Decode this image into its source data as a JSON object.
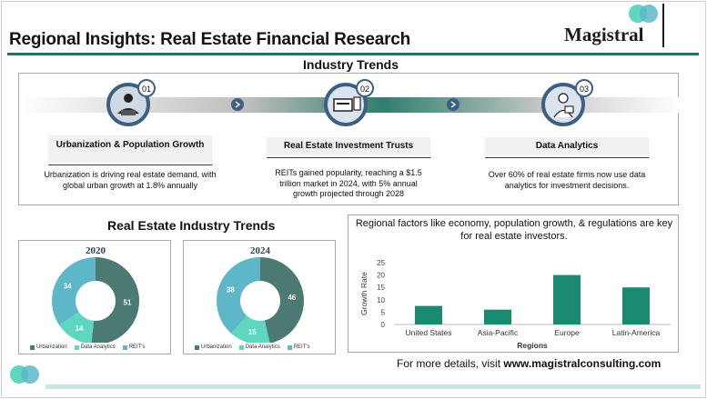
{
  "header": {
    "title": "Regional Insights: Real Estate Financial Research",
    "logo_text": "Magistral"
  },
  "industry_trends": {
    "heading": "Industry Trends",
    "items": [
      {
        "number": "01",
        "label": "Urbanization & Population Growth",
        "description": "Urbanization is driving real estate demand, with global urban growth at 1.8% annually"
      },
      {
        "number": "02",
        "label": "Real Estate Investment Trusts",
        "description": "REITs gained popularity, reaching a $1.5 trillion market in 2024, with 5% annual growth projected through 2028"
      },
      {
        "number": "03",
        "label": "Data Analytics",
        "description": "Over 60% of real estate firms now use data analytics for investment decisions."
      }
    ]
  },
  "donut_section": {
    "heading": "Real Estate Industry Trends"
  },
  "colors": {
    "urbanization": "#4c7a72",
    "data_analytics": "#5fd6c0",
    "reits": "#5db7c9",
    "bar": "#1b8a70",
    "accent": "#2c6e64"
  },
  "chart_data": [
    {
      "type": "pie",
      "title": "2020",
      "categories": [
        "Urbanization",
        "Data Analytics",
        "REIT's"
      ],
      "values": [
        51,
        14,
        34
      ],
      "donut": true
    },
    {
      "type": "pie",
      "title": "2024",
      "categories": [
        "Urbanization",
        "Data Analytics",
        "REIT's"
      ],
      "values": [
        46,
        15,
        38
      ],
      "donut": true
    },
    {
      "type": "bar",
      "title": "Regional factors like economy, population growth, & regulations are key for real estate investors.",
      "categories": [
        "United States",
        "Asia-Pacific",
        "Europe",
        "Latin-America"
      ],
      "values": [
        7.5,
        6,
        20,
        15
      ],
      "xlabel": "Regions",
      "ylabel": "Growth Rate",
      "ylim": [
        0,
        25
      ],
      "yticks": [
        0,
        5,
        10,
        15,
        20,
        25
      ],
      "grid": false
    }
  ],
  "footer": {
    "prefix": "For more details, visit ",
    "link": "www.magistralconsulting.com"
  }
}
